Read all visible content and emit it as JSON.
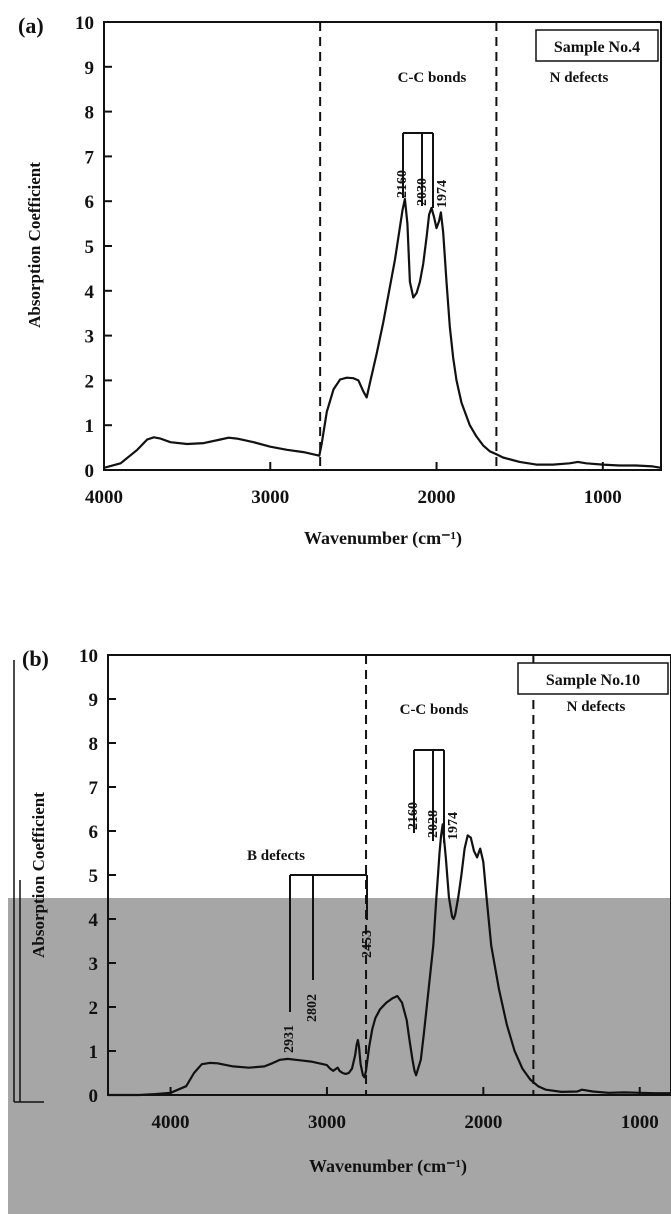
{
  "chart_data": [
    {
      "type": "line",
      "panel_label": "(a)",
      "sample_label": "Sample No.4",
      "xlabel": "Wavenumber (cm⁻¹)",
      "ylabel": "Absorption Coefficient",
      "xlim": [
        4000,
        650
      ],
      "ylim": [
        0,
        10
      ],
      "x_ticks": [
        4000,
        3000,
        2000,
        1000
      ],
      "y_ticks": [
        0,
        1,
        2,
        3,
        4,
        5,
        6,
        7,
        8,
        9,
        10
      ],
      "dividers": [
        2700,
        1640
      ],
      "region_labels": [
        "C-C bonds",
        "N defects"
      ],
      "peak_labels": [
        "2160",
        "2030",
        "1974"
      ],
      "series": [
        {
          "x": [
            4000,
            3900,
            3800,
            3740,
            3700,
            3660,
            3600,
            3500,
            3400,
            3300,
            3250,
            3200,
            3100,
            3000,
            2900,
            2800,
            2705,
            2690,
            2660,
            2620,
            2580,
            2540,
            2500,
            2470,
            2440,
            2420,
            2400,
            2360,
            2320,
            2280,
            2250,
            2225,
            2205,
            2190,
            2175,
            2160,
            2140,
            2120,
            2100,
            2080,
            2060,
            2045,
            2030,
            2015,
            2000,
            1985,
            1974,
            1960,
            1940,
            1920,
            1900,
            1880,
            1850,
            1800,
            1760,
            1720,
            1680,
            1640,
            1600,
            1500,
            1400,
            1300,
            1200,
            1150,
            1100,
            1000,
            900,
            800,
            700,
            650
          ],
          "y": [
            0.05,
            0.15,
            0.45,
            0.68,
            0.73,
            0.7,
            0.62,
            0.58,
            0.6,
            0.68,
            0.72,
            0.7,
            0.62,
            0.52,
            0.45,
            0.4,
            0.32,
            0.6,
            1.3,
            1.8,
            2.02,
            2.06,
            2.05,
            2.0,
            1.75,
            1.62,
            1.95,
            2.6,
            3.3,
            4.1,
            4.7,
            5.3,
            5.8,
            6.05,
            5.5,
            4.2,
            3.85,
            3.95,
            4.2,
            4.6,
            5.2,
            5.7,
            5.85,
            5.65,
            5.4,
            5.55,
            5.75,
            5.3,
            4.2,
            3.2,
            2.5,
            2.0,
            1.5,
            1.0,
            0.75,
            0.55,
            0.42,
            0.35,
            0.28,
            0.18,
            0.12,
            0.12,
            0.15,
            0.18,
            0.15,
            0.12,
            0.1,
            0.1,
            0.08,
            0.05
          ]
        }
      ]
    },
    {
      "type": "line",
      "panel_label": "(b)",
      "sample_label": "Sample No.10",
      "xlabel": "Wavenumber (cm⁻¹)",
      "ylabel": "Absorption Coefficient",
      "xlim": [
        4400,
        800
      ],
      "ylim": [
        0,
        10
      ],
      "x_ticks": [
        4000,
        3000,
        2000,
        1000
      ],
      "y_ticks": [
        0,
        1,
        2,
        3,
        4,
        5,
        6,
        7,
        8,
        9,
        10
      ],
      "dividers": [
        2750,
        1680
      ],
      "region_labels": [
        "C-C bonds",
        "N defects",
        "B defects"
      ],
      "peak_labels": [
        "2160",
        "2028",
        "1974",
        "2931",
        "2802",
        "2453"
      ],
      "series": [
        {
          "x": [
            4400,
            4300,
            4200,
            4100,
            4000,
            3900,
            3850,
            3800,
            3750,
            3700,
            3600,
            3500,
            3400,
            3350,
            3300,
            3250,
            3200,
            3150,
            3100,
            3050,
            3000,
            2980,
            2960,
            2940,
            2931,
            2920,
            2900,
            2880,
            2860,
            2840,
            2820,
            2810,
            2802,
            2795,
            2785,
            2770,
            2760,
            2750,
            2730,
            2710,
            2690,
            2660,
            2620,
            2580,
            2550,
            2520,
            2490,
            2470,
            2453,
            2440,
            2430,
            2400,
            2380,
            2350,
            2320,
            2300,
            2290,
            2280,
            2270,
            2260,
            2240,
            2220,
            2200,
            2190,
            2180,
            2160,
            2140,
            2120,
            2100,
            2080,
            2060,
            2040,
            2030,
            2020,
            2000,
            1980,
            1950,
            1900,
            1850,
            1800,
            1750,
            1700,
            1650,
            1600,
            1500,
            1400,
            1370,
            1300,
            1200,
            1100,
            1000,
            900,
            800
          ],
          "y": [
            0.0,
            0.0,
            0.0,
            0.02,
            0.05,
            0.2,
            0.5,
            0.7,
            0.73,
            0.72,
            0.65,
            0.62,
            0.65,
            0.72,
            0.8,
            0.82,
            0.8,
            0.78,
            0.76,
            0.72,
            0.68,
            0.6,
            0.55,
            0.6,
            0.62,
            0.55,
            0.5,
            0.48,
            0.5,
            0.6,
            0.9,
            1.15,
            1.25,
            1.1,
            0.7,
            0.45,
            0.4,
            0.55,
            1.1,
            1.5,
            1.75,
            1.95,
            2.1,
            2.2,
            2.25,
            2.1,
            1.7,
            1.2,
            0.8,
            0.55,
            0.45,
            0.8,
            1.4,
            2.4,
            3.4,
            4.5,
            5.0,
            5.5,
            5.9,
            6.15,
            5.4,
            4.5,
            4.05,
            4.0,
            4.1,
            4.5,
            5.0,
            5.6,
            5.9,
            5.85,
            5.55,
            5.4,
            5.5,
            5.6,
            5.3,
            4.5,
            3.4,
            2.4,
            1.6,
            1.0,
            0.6,
            0.35,
            0.2,
            0.12,
            0.07,
            0.08,
            0.12,
            0.08,
            0.05,
            0.06,
            0.05,
            0.04,
            0.04
          ]
        }
      ]
    }
  ]
}
